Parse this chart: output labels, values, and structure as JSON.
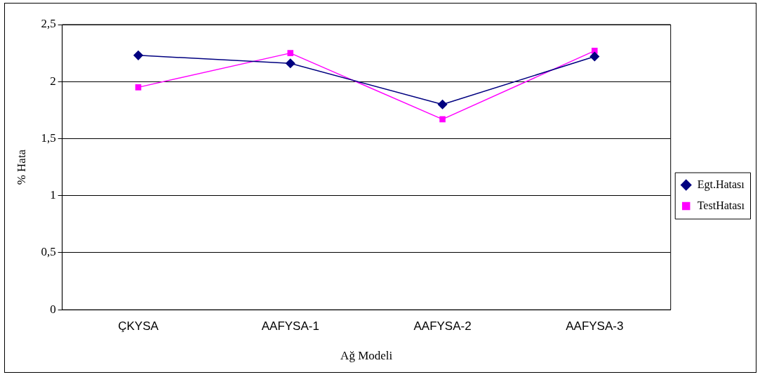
{
  "chart_data": {
    "type": "line",
    "xlabel": "Ağ Modeli",
    "ylabel": "% Hata",
    "categories": [
      "ÇKYSA",
      "AAFYSA-1",
      "AAFYSA-2",
      "AAFYSA-3"
    ],
    "series": [
      {
        "name": "Egt.Hatası",
        "color": "#000080",
        "marker": "diamond",
        "values": [
          2.23,
          2.16,
          1.8,
          2.22
        ]
      },
      {
        "name": "TestHatası",
        "color": "#ff00ff",
        "marker": "square",
        "values": [
          1.95,
          2.25,
          1.67,
          2.27
        ]
      }
    ],
    "ylim": [
      0,
      2.5
    ],
    "yticks": [
      0,
      {
        "value": 0.5,
        "label": "0,5"
      },
      1,
      {
        "value": 1.5,
        "label": "1,5"
      },
      2,
      {
        "value": 2.5,
        "label": "2,5"
      }
    ],
    "grid": "y",
    "legend": "right"
  }
}
